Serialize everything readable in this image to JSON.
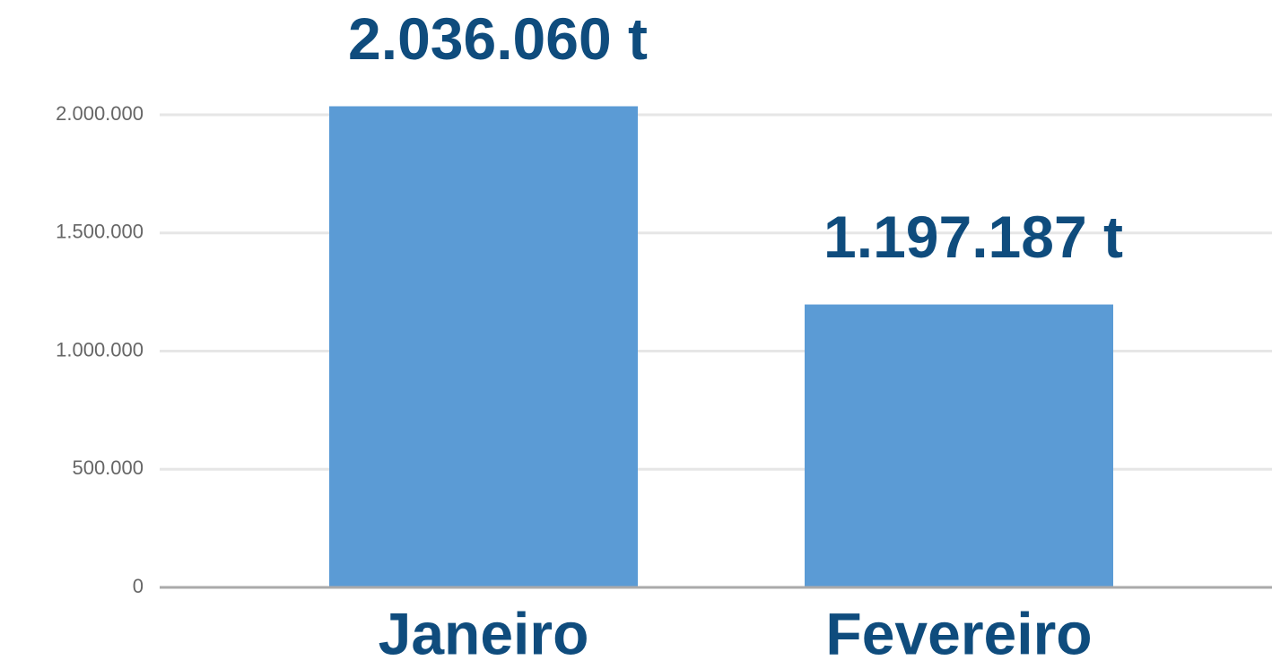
{
  "chart_data": {
    "type": "bar",
    "categories": [
      "Janeiro",
      "Fevereiro"
    ],
    "values": [
      2036060,
      1197187
    ],
    "value_labels": [
      "2.036.060 t",
      "1.197.187 t"
    ],
    "color": "#5b9bd5",
    "ylim": [
      0,
      2000000
    ],
    "yticks": [
      0,
      {
        "value": 500000,
        "label": "500.000"
      },
      {
        "value": 1000000,
        "label": "1.000.000"
      },
      {
        "value": 1500000,
        "label": "1.500.000"
      },
      {
        "value": 2000000,
        "label": "2.000.000"
      }
    ],
    "grid": true
  }
}
